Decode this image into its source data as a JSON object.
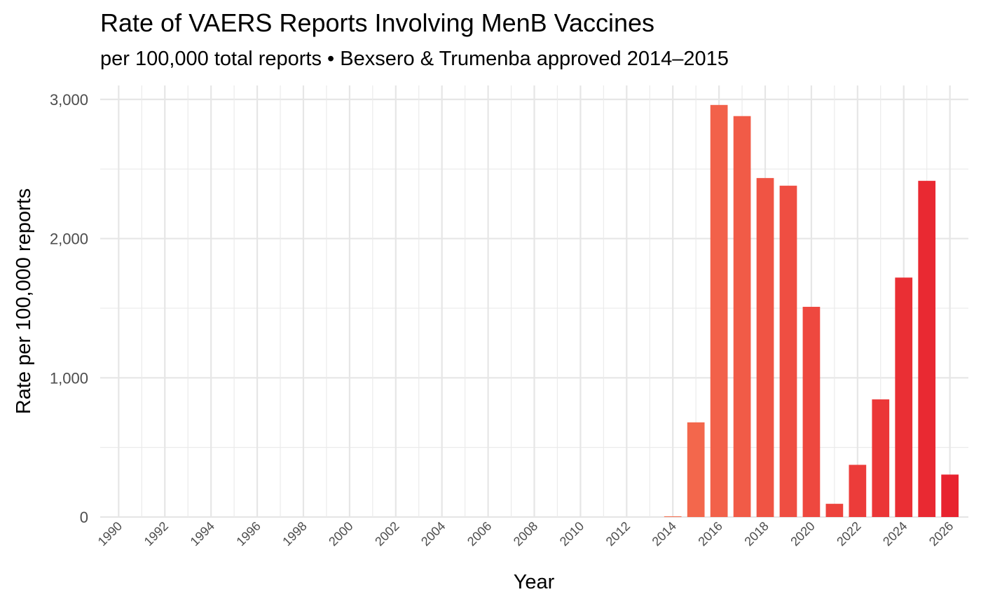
{
  "chart_data": {
    "type": "bar",
    "title": "Rate of VAERS Reports Involving MenB Vaccines",
    "subtitle": "per 100,000 total reports • Bexsero & Trumenba approved 2014–2015",
    "xlabel": "Year",
    "ylabel": "Rate per 100,000 reports",
    "xlim": [
      1989.2,
      2026.8
    ],
    "ylim": [
      0,
      3100
    ],
    "x_ticks": [
      1990,
      1992,
      1994,
      1996,
      1998,
      2000,
      2002,
      2004,
      2006,
      2008,
      2010,
      2012,
      2014,
      2016,
      2018,
      2020,
      2022,
      2024,
      2026
    ],
    "y_ticks": [
      0,
      1000,
      2000,
      3000
    ],
    "y_tick_labels": [
      "0",
      "1,000",
      "2,000",
      "3,000"
    ],
    "grid": true,
    "bar_color_start": "#f46d4f",
    "bar_color_end": "#e8232f",
    "x": [
      2014,
      2015,
      2016,
      2017,
      2018,
      2019,
      2020,
      2021,
      2022,
      2023,
      2024,
      2025,
      2026
    ],
    "values": [
      5,
      680,
      2960,
      2880,
      2435,
      2380,
      1510,
      95,
      375,
      845,
      1720,
      2415,
      305
    ]
  }
}
